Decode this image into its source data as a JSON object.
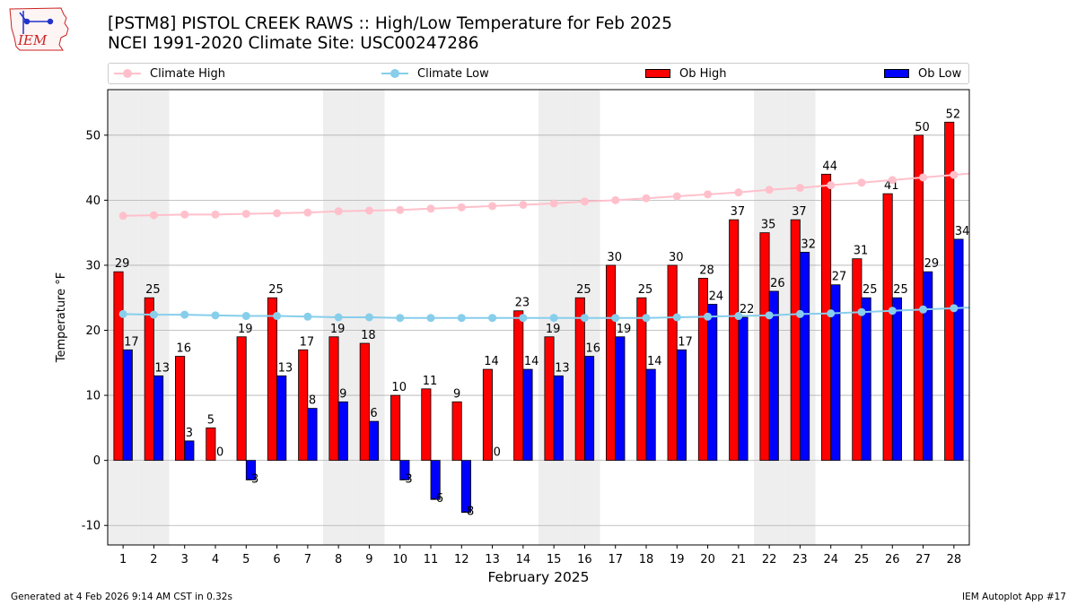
{
  "header": {
    "title_line1": "[PSTM8] PISTOL CREEK RAWS :: High/Low Temperature for Feb 2025",
    "title_line2": "NCEI 1991-2020 Climate Site: USC00247286",
    "logo_text": "IEM"
  },
  "footer": {
    "generated": "Generated at 4 Feb 2026 9:14 AM CST in 0.32s",
    "app": "IEM Autoplot App #17"
  },
  "colors": {
    "climate_high": "#ffc0cb",
    "climate_low": "#87ceeb",
    "ob_high": "#ff0000",
    "ob_low": "#0000ff",
    "weekend_band": "#eeeeee",
    "grid": "#b0b0b0"
  },
  "chart_data": {
    "type": "bar",
    "xlabel": "February 2025",
    "ylabel": "Temperature °F",
    "ylim": [
      -13,
      57
    ],
    "yticks": [
      -10,
      0,
      10,
      20,
      30,
      40,
      50
    ],
    "grid": true,
    "legend_position": "top",
    "categories": [
      "1",
      "2",
      "3",
      "4",
      "5",
      "6",
      "7",
      "8",
      "9",
      "10",
      "11",
      "12",
      "13",
      "14",
      "15",
      "16",
      "17",
      "18",
      "19",
      "20",
      "21",
      "22",
      "23",
      "24",
      "25",
      "26",
      "27",
      "28"
    ],
    "shaded_days": [
      1,
      2,
      8,
      9,
      15,
      16,
      22,
      23
    ],
    "series": [
      {
        "name": "Climate High",
        "kind": "line",
        "values": [
          37.6,
          37.7,
          37.8,
          37.8,
          37.9,
          38.0,
          38.1,
          38.3,
          38.4,
          38.5,
          38.7,
          38.9,
          39.1,
          39.3,
          39.5,
          39.8,
          40.0,
          40.3,
          40.6,
          40.9,
          41.2,
          41.6,
          41.9,
          42.3,
          42.7,
          43.1,
          43.5,
          43.9
        ]
      },
      {
        "name": "Climate Low",
        "kind": "line",
        "values": [
          22.5,
          22.4,
          22.4,
          22.3,
          22.2,
          22.2,
          22.1,
          22.0,
          22.0,
          21.9,
          21.9,
          21.9,
          21.9,
          21.9,
          21.9,
          21.9,
          21.9,
          21.9,
          22.0,
          22.1,
          22.2,
          22.3,
          22.5,
          22.6,
          22.8,
          23.0,
          23.2,
          23.4
        ]
      },
      {
        "name": "Ob High",
        "kind": "bar",
        "values": [
          29,
          25,
          16,
          5,
          19,
          25,
          17,
          19,
          18,
          10,
          11,
          9,
          14,
          23,
          19,
          25,
          30,
          25,
          30,
          28,
          37,
          35,
          37,
          44,
          31,
          41,
          50,
          52
        ]
      },
      {
        "name": "Ob Low",
        "kind": "bar",
        "values": [
          17,
          13,
          3,
          0,
          -3,
          13,
          8,
          9,
          6,
          -3,
          -6,
          -8,
          0,
          14,
          13,
          16,
          19,
          14,
          17,
          24,
          22,
          26,
          32,
          27,
          25,
          25,
          29,
          34
        ]
      }
    ]
  }
}
